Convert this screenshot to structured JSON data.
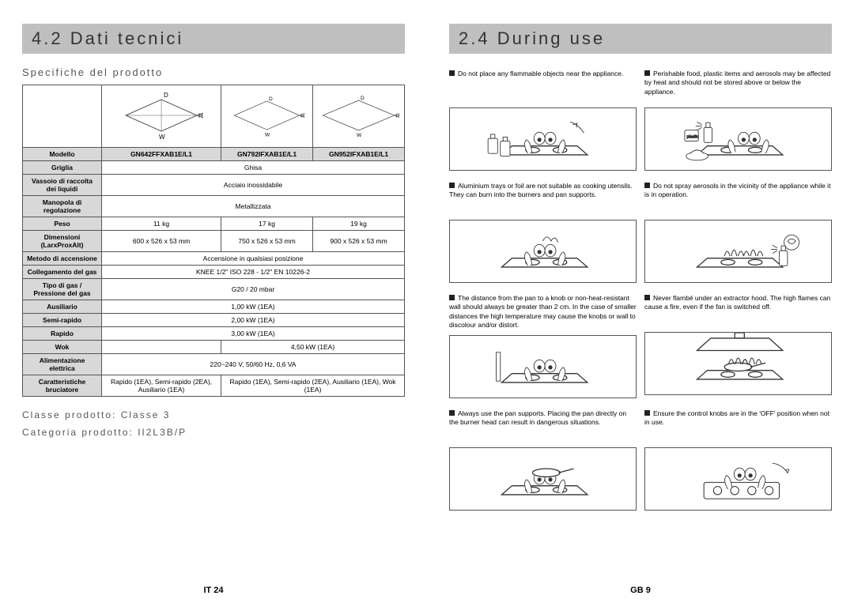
{
  "left": {
    "header": "4.2 Dati tecnici",
    "subheading": "Specifiche del prodotto",
    "diagram_labels": {
      "D": "D",
      "H": "H",
      "W": "W"
    },
    "table": {
      "header": {
        "label": "Modello",
        "cols": [
          "GN642FFXAB1E/L1",
          "GN792IFXAB1E/L1",
          "GN952IFXAB1E/L1"
        ]
      },
      "rows": [
        {
          "label": "Griglia",
          "span": "Ghisa"
        },
        {
          "label": "Vassoio di raccolta dei liquidi",
          "span": "Acciaio inossidabile"
        },
        {
          "label": "Manopola di regolazione",
          "span": "Metallizzata"
        },
        {
          "label": "Peso",
          "cols": [
            "11 kg",
            "17 kg",
            "19 kg"
          ]
        },
        {
          "label": "Dimensioni (LarxProxAlt)",
          "cols": [
            "600 x 526 x 53 mm",
            "750 x 526 x 53 mm",
            "900 x 526 x 53 mm"
          ]
        },
        {
          "label": "Metodo di accensione",
          "span": "Accensione in qualsiasi posizione"
        },
        {
          "label": "Collegamento del gas",
          "span": "KNEE 1/2\" ISO 228 - 1/2\" EN 10226-2"
        },
        {
          "label": "Tipo di gas / Pressione del gas",
          "span": "G20 / 20 mbar"
        },
        {
          "label": "Ausiliario",
          "span": "1,00 kW (1EA)"
        },
        {
          "label": "Semi-rapido",
          "span": "2,00 kW (1EA)"
        },
        {
          "label": "Rapido",
          "span": "3,00 kW (1EA)"
        },
        {
          "label": "Wok",
          "span": "4,50 kW (1EA)",
          "skip_first": true
        },
        {
          "label": "Alimentazione elettrica",
          "span": "220~240 V, 50/60 Hz, 0,6 VA"
        },
        {
          "label": "Caratteristiche bruciatore",
          "cols": [
            "Rapido (1EA), Semi-rapido (2EA), Ausiliario (1EA)",
            "Rapido (1EA), Semi-rapido (2EA), Ausiliario (1EA), Wok (1EA)"
          ],
          "colspan": [
            1,
            2
          ]
        }
      ]
    },
    "footer1": "Classe prodotto: Classe 3",
    "footer2": "Categoria prodotto: II2L3B/P",
    "page_num": "IT 24"
  },
  "right": {
    "header": "2.4 During use",
    "warnings": [
      {
        "text": "Do not place any flammable objects near the appliance."
      },
      {
        "text": "Perishable food, plastic items and aerosols may be affected by heat and should not be stored above or below the appliance."
      },
      {
        "text": "Aluminium trays or foil are not suitable as cooking utensils. They can burn into the burners and pan supports."
      },
      {
        "text": "Do not spray aerosols in the vicinity of the appliance while it is in operation."
      },
      {
        "text": "The distance from the pan to a knob or non-heat-resistant wall should always be greater than 2 cm. In the case of smaller distances the high temperature may cause the knobs or wall to discolour and/or distort."
      },
      {
        "text": "Never flambé under an extractor hood. The high flames can cause a fire, even if the fan is switched off."
      },
      {
        "text": "Always use the pan supports. Placing the pan directly on the burner head can result in dangerous situations."
      },
      {
        "text": "Ensure the control knobs are in the 'OFF' position when not in use."
      }
    ],
    "page_num": "GB 9",
    "svg_colors": {
      "stroke": "#333333",
      "fill_white": "#ffffff",
      "fill_grey": "#cccccc"
    }
  }
}
